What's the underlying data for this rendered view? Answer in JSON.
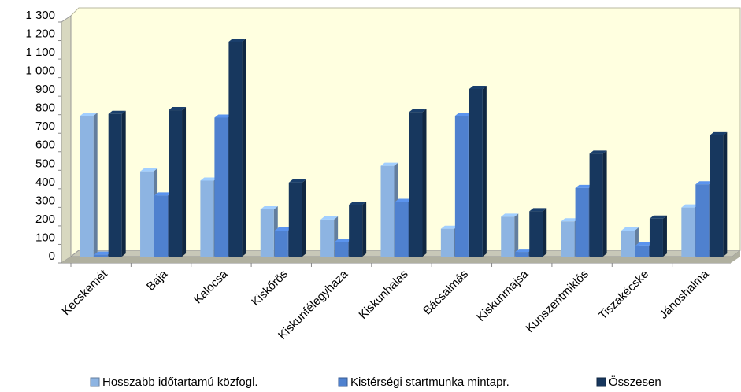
{
  "chart_data": {
    "type": "bar3d",
    "categories": [
      "Kecskemét",
      "Baja",
      "Kalocsa",
      "Kiskőrös",
      "Kiskunfélegyháza",
      "Kiskunhalas",
      "Bácsalmás",
      "Kiskunmajsa",
      "Kunszentmiklós",
      "Tiszakécske",
      "Jánoshalma"
    ],
    "series": [
      {
        "name": "Hosszabb időtartamú  közfogl.",
        "color": "#8db4e2",
        "values": [
          760,
          460,
          410,
          255,
          200,
          490,
          150,
          215,
          190,
          140,
          265
        ]
      },
      {
        "name": "Kistérségi startmunka  mintapr.",
        "color": "#4f81cf",
        "values": [
          10,
          330,
          750,
          140,
          80,
          295,
          760,
          25,
          370,
          60,
          390
        ]
      },
      {
        "name": "Összesen",
        "color": "#17375e",
        "values": [
          770,
          790,
          1160,
          400,
          280,
          780,
          905,
          245,
          555,
          205,
          655
        ]
      }
    ],
    "ylim": [
      0,
      1300
    ],
    "yticks": [
      0,
      100,
      200,
      300,
      400,
      500,
      600,
      700,
      800,
      900,
      {
        "value": 1000,
        "label": "1 000"
      },
      {
        "value": 1100,
        "label": "1 100"
      },
      {
        "value": 1200,
        "label": "1 200"
      },
      {
        "value": 1300,
        "label": "1 300"
      }
    ],
    "grid": false,
    "legend": "bottom"
  }
}
